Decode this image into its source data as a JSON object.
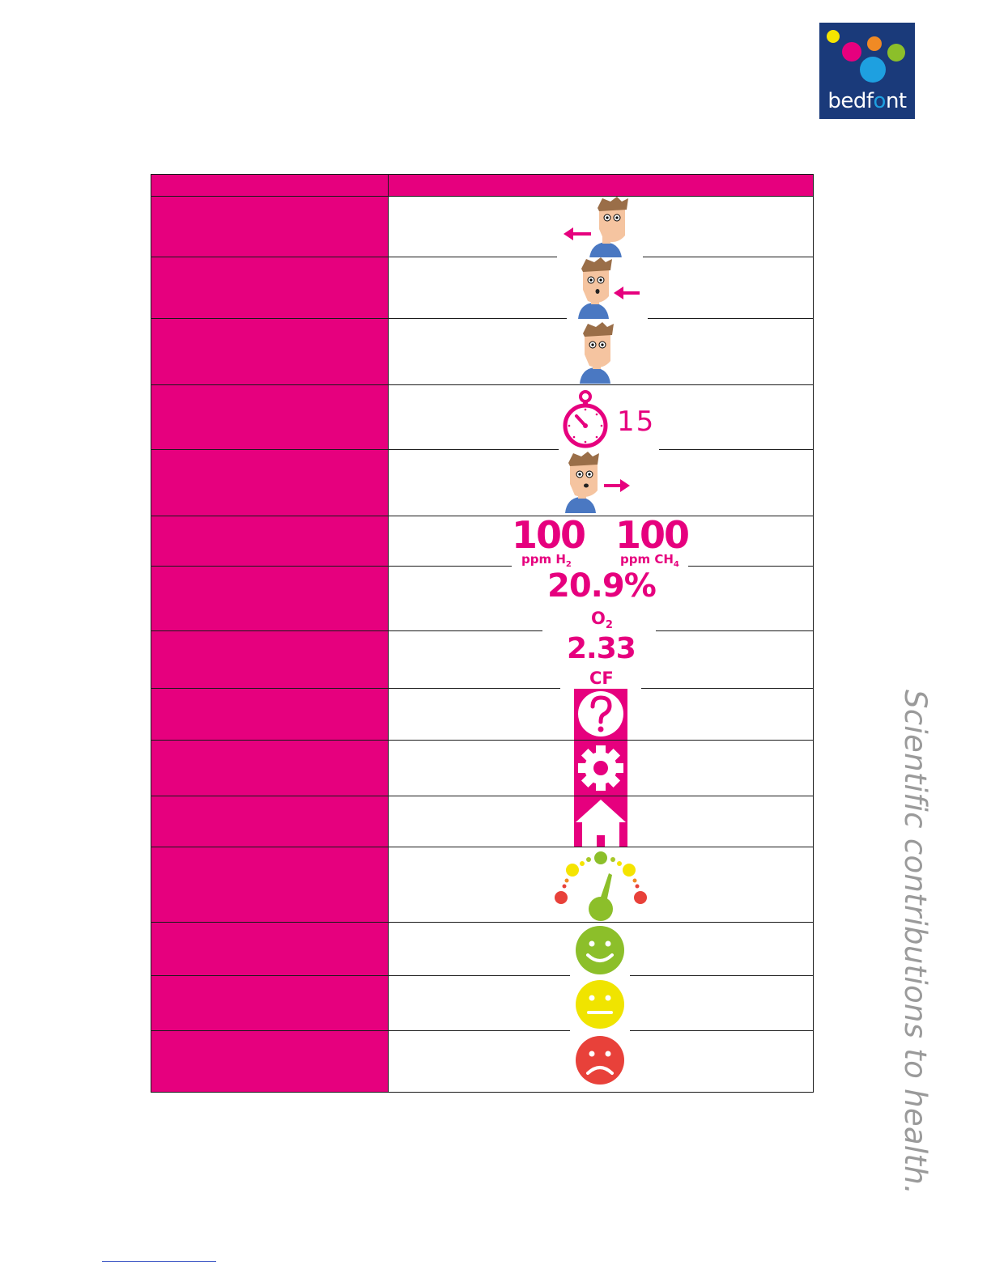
{
  "header": {
    "logo_text_pre": "bedf",
    "logo_text_o": "o",
    "logo_text_post": "nt",
    "tagline": "Scientific contributions to health."
  },
  "colors": {
    "brand_magenta": "#e6007e",
    "logo_navy": "#1a3a7a",
    "good": "#8cbf2a",
    "medium": "#f0e400",
    "bad": "#e8413a"
  },
  "table": {
    "rows": [
      {
        "icon": "face-exhale-left-icon"
      },
      {
        "icon": "face-inhale-icon"
      },
      {
        "icon": "face-hold-icon"
      },
      {
        "icon": "stopwatch-icon",
        "value": "15"
      },
      {
        "icon": "face-exhale-right-icon"
      },
      {
        "icon": "h2-ch4-readout",
        "h2_value": "100",
        "h2_unit": "ppm H",
        "h2_sub": "2",
        "ch4_value": "100",
        "ch4_unit": "ppm CH",
        "ch4_sub": "4"
      },
      {
        "icon": "o2-readout",
        "value": "20.9%",
        "label": "O",
        "label_sub": "2"
      },
      {
        "icon": "cf-readout",
        "value": "2.33",
        "label": "CF"
      },
      {
        "icon": "help-question-icon"
      },
      {
        "icon": "settings-gear-icon"
      },
      {
        "icon": "home-icon"
      },
      {
        "icon": "gauge-meter-icon"
      },
      {
        "icon": "smiley-happy-icon"
      },
      {
        "icon": "smiley-neutral-icon"
      },
      {
        "icon": "smiley-sad-icon"
      }
    ]
  }
}
